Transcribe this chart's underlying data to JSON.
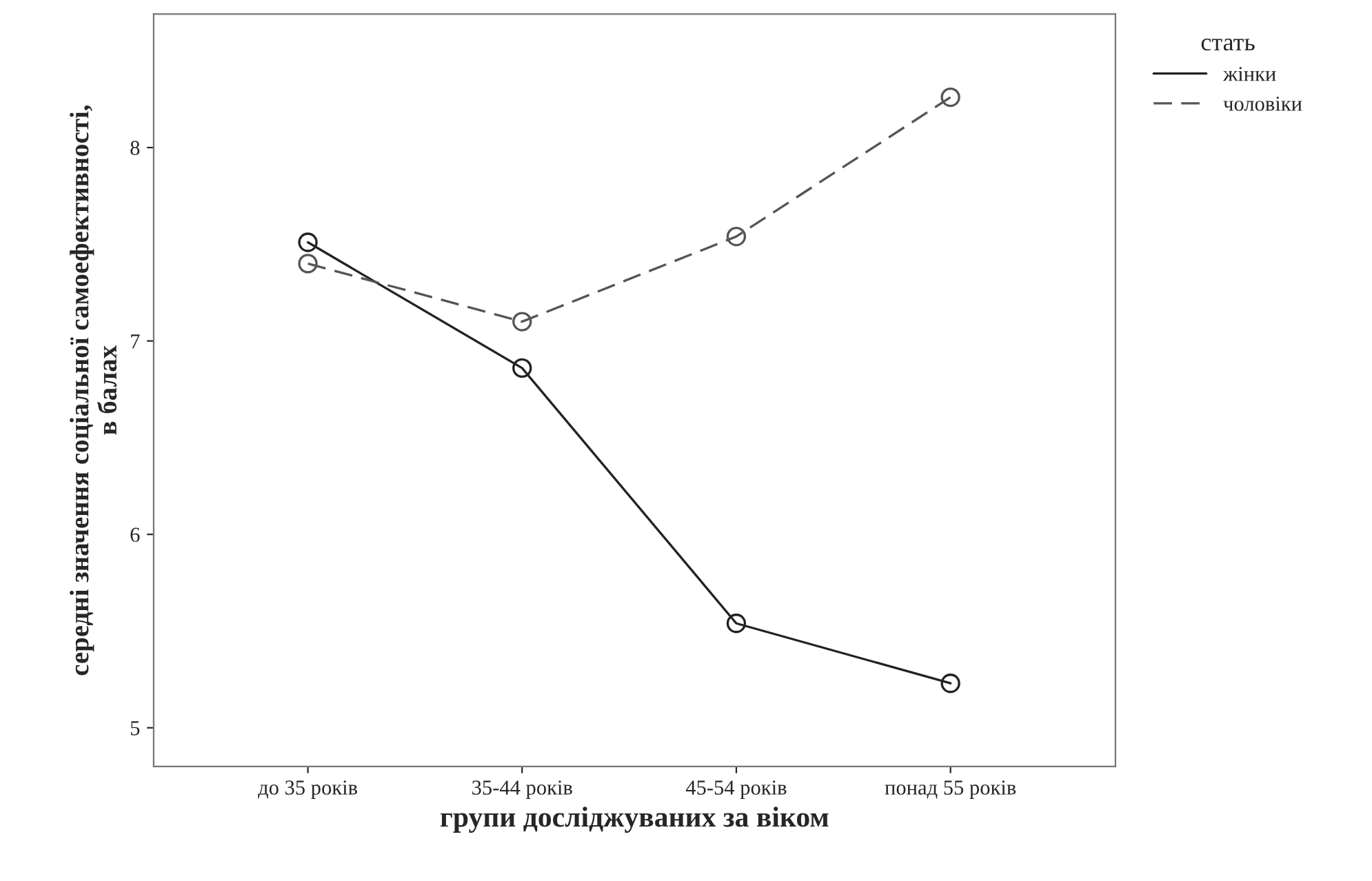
{
  "chart_data": {
    "type": "line",
    "xlabel": "групи досліджуваних за віком",
    "ylabel": "середні значення соціальної самоефективності,\nв балах",
    "legend_title": "стать",
    "categories": [
      "до 35 років",
      "35-44 років",
      "45-54 років",
      "понад 55 років"
    ],
    "series": [
      {
        "name": "жінки",
        "color": "#222222",
        "values": [
          7.51,
          6.86,
          5.54,
          5.23
        ],
        "line_style": "solid"
      },
      {
        "name": "чоловіки",
        "color": "#555555",
        "values": [
          7.4,
          7.1,
          7.54,
          8.26
        ],
        "line_style": "dashed"
      }
    ],
    "ylim": [
      4.8,
      8.69
    ],
    "yticks": [
      5,
      6,
      7,
      8
    ],
    "marker": "circle",
    "grid": false,
    "legend": "top right"
  }
}
